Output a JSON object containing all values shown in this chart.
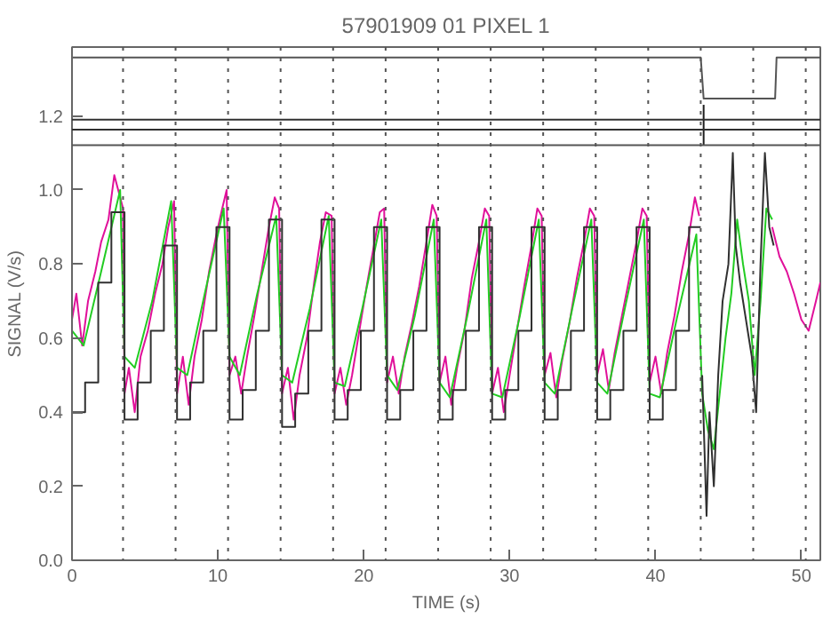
{
  "chart_data": {
    "type": "line",
    "title": "57901909 01 PIXEL 1",
    "xlabel": "TIME (s)",
    "ylabel": "SIGNAL (V/s)",
    "xlim": [
      0,
      51.3
    ],
    "ylim": [
      0,
      1.386
    ],
    "xticks": [
      0,
      10,
      20,
      30,
      40,
      50
    ],
    "yticks": [
      {
        "value": 0,
        "label": "0.0"
      },
      {
        "value": 0.2,
        "label": "0.2"
      },
      {
        "value": 0.4,
        "label": "0.4"
      },
      {
        "value": 0.6,
        "label": "0.6"
      },
      {
        "value": 0.8,
        "label": "0.8"
      },
      {
        "value": 1.0,
        "label": "1.0"
      },
      {
        "value": 1.2,
        "label": "1.2"
      }
    ],
    "grid": false,
    "marker": "none",
    "line_style": "solid",
    "series": [
      {
        "color": "#e0109a",
        "x": [
          0,
          0.3,
          0.7,
          1.1,
          1.6,
          2.0,
          2.5,
          2.9,
          3.3,
          3.5,
          3.6,
          3.9,
          4.3,
          4.7,
          5.2,
          5.7,
          6.2,
          6.6,
          7.0,
          7.2,
          7.6,
          8.0,
          8.4,
          8.9,
          9.4,
          9.9,
          10.3,
          10.6,
          10.8,
          11.2,
          11.6,
          12.0,
          12.5,
          13.0,
          13.5,
          13.9,
          14.2,
          14.4,
          14.8,
          15.2,
          15.6,
          16.1,
          16.6,
          17.0,
          17.4,
          17.8,
          18.0,
          18.4,
          18.8,
          19.2,
          19.7,
          20.2,
          20.7,
          21.1,
          21.4,
          21.6,
          22.0,
          22.4,
          22.8,
          23.3,
          23.8,
          24.3,
          24.7,
          25.0,
          25.2,
          25.6,
          26.0,
          26.4,
          26.9,
          27.4,
          27.9,
          28.3,
          28.6,
          28.8,
          29.2,
          29.6,
          30.0,
          30.5,
          31.0,
          31.5,
          31.9,
          32.2,
          32.4,
          32.8,
          33.2,
          33.6,
          34.1,
          34.6,
          35.1,
          35.5,
          35.8,
          36.0,
          36.4,
          36.8,
          37.2,
          37.7,
          38.2,
          38.7,
          39.1,
          39.4,
          39.6,
          40.0,
          40.4,
          40.8,
          41.3,
          41.8,
          42.3,
          42.7,
          43.0
        ],
        "values": [
          0.65,
          0.72,
          0.58,
          0.7,
          0.78,
          0.86,
          0.92,
          1.04,
          0.98,
          0.95,
          0.45,
          0.52,
          0.4,
          0.55,
          0.62,
          0.72,
          0.8,
          0.9,
          0.97,
          0.45,
          0.55,
          0.42,
          0.55,
          0.65,
          0.78,
          0.88,
          0.95,
          1.0,
          0.5,
          0.55,
          0.45,
          0.55,
          0.66,
          0.78,
          0.9,
          0.98,
          0.95,
          0.45,
          0.52,
          0.38,
          0.5,
          0.6,
          0.75,
          0.86,
          0.94,
          0.93,
          0.45,
          0.52,
          0.42,
          0.5,
          0.62,
          0.74,
          0.85,
          0.94,
          0.95,
          0.48,
          0.55,
          0.45,
          0.55,
          0.64,
          0.74,
          0.86,
          0.96,
          0.93,
          0.48,
          0.55,
          0.42,
          0.52,
          0.62,
          0.76,
          0.86,
          0.95,
          0.93,
          0.45,
          0.52,
          0.4,
          0.5,
          0.62,
          0.74,
          0.85,
          0.95,
          0.93,
          0.5,
          0.56,
          0.44,
          0.54,
          0.64,
          0.76,
          0.86,
          0.95,
          0.93,
          0.5,
          0.57,
          0.46,
          0.56,
          0.66,
          0.76,
          0.86,
          0.95,
          0.93,
          0.48,
          0.55,
          0.45,
          0.56,
          0.66,
          0.78,
          0.88,
          0.98,
          0.93
        ]
      },
      {
        "color": "#e0109a",
        "x": [
          48.0,
          48.5,
          49.0,
          49.5,
          50.0,
          50.5,
          51.0,
          51.3
        ],
        "values": [
          0.9,
          0.82,
          0.78,
          0.72,
          0.65,
          0.62,
          0.7,
          0.75
        ]
      },
      {
        "color": "#22cc22",
        "x": [
          0,
          0.8,
          2.0,
          3.3,
          3.6,
          4.3,
          5.5,
          6.8,
          7.2,
          7.9,
          9.1,
          10.4,
          10.8,
          11.5,
          12.7,
          14.0,
          14.4,
          15.1,
          16.3,
          17.6,
          18.0,
          18.7,
          19.9,
          21.2,
          21.6,
          22.3,
          23.5,
          24.8,
          25.2,
          25.9,
          27.1,
          28.4,
          28.8,
          29.5,
          30.7,
          32.0,
          32.4,
          33.1,
          34.3,
          35.6,
          36.0,
          36.7,
          37.9,
          39.2,
          39.6,
          40.3,
          41.5,
          42.8,
          43.2,
          43.6,
          44.0,
          44.4,
          44.8,
          45.2,
          45.6,
          46.0,
          46.4,
          46.8,
          47.2,
          47.6,
          48.0
        ],
        "values": [
          0.62,
          0.58,
          0.78,
          1.0,
          0.55,
          0.52,
          0.7,
          0.97,
          0.52,
          0.5,
          0.72,
          0.95,
          0.55,
          0.5,
          0.72,
          0.93,
          0.5,
          0.48,
          0.68,
          0.93,
          0.48,
          0.47,
          0.68,
          0.92,
          0.5,
          0.46,
          0.66,
          0.92,
          0.48,
          0.44,
          0.66,
          0.92,
          0.45,
          0.44,
          0.66,
          0.92,
          0.48,
          0.45,
          0.68,
          0.92,
          0.48,
          0.45,
          0.68,
          0.92,
          0.45,
          0.44,
          0.66,
          0.88,
          0.45,
          0.35,
          0.3,
          0.45,
          0.6,
          0.72,
          0.92,
          0.8,
          0.7,
          0.5,
          0.7,
          0.95,
          0.92
        ]
      },
      {
        "type": "step",
        "color": "#303030",
        "x": [
          0,
          0.9,
          1.8,
          2.7,
          3.6,
          4.5,
          5.4,
          6.3,
          7.2,
          8.1,
          9.0,
          9.9,
          10.8,
          11.7,
          12.6,
          13.5,
          14.4,
          15.3,
          16.2,
          17.1,
          18.0,
          18.9,
          19.8,
          20.7,
          21.6,
          22.5,
          23.4,
          24.3,
          25.2,
          26.1,
          27.0,
          27.9,
          28.8,
          29.7,
          30.6,
          31.5,
          32.4,
          33.3,
          34.2,
          35.1,
          36.0,
          36.9,
          37.8,
          38.7,
          39.6,
          40.5,
          41.4,
          42.3,
          43.1
        ],
        "values": [
          0.4,
          0.48,
          0.75,
          0.94,
          0.38,
          0.48,
          0.62,
          0.85,
          0.38,
          0.48,
          0.62,
          0.9,
          0.38,
          0.46,
          0.62,
          0.92,
          0.36,
          0.45,
          0.62,
          0.92,
          0.38,
          0.46,
          0.62,
          0.9,
          0.38,
          0.46,
          0.62,
          0.9,
          0.38,
          0.46,
          0.62,
          0.9,
          0.38,
          0.46,
          0.62,
          0.9,
          0.38,
          0.46,
          0.62,
          0.9,
          0.38,
          0.46,
          0.62,
          0.9,
          0.38,
          0.46,
          0.62,
          0.9,
          0.9
        ]
      },
      {
        "type": "line",
        "color": "#303030",
        "x": [
          43.2,
          43.5,
          43.7,
          44.0,
          44.3,
          44.6,
          45.0,
          45.3,
          45.5,
          45.8,
          46.2,
          46.6,
          46.9,
          47.2,
          47.5,
          47.8,
          48.1
        ],
        "values": [
          0.5,
          0.12,
          0.4,
          0.2,
          0.5,
          0.7,
          0.8,
          1.1,
          0.85,
          0.75,
          0.65,
          0.55,
          0.4,
          0.8,
          1.1,
          0.9,
          0.85
        ]
      },
      {
        "type": "line",
        "color": "#555555",
        "x": [
          0,
          43.1,
          43.3,
          48.2,
          48.3,
          51.3
        ],
        "values": [
          1.358,
          1.358,
          1.247,
          1.247,
          1.358,
          1.358
        ]
      },
      {
        "type": "line",
        "color": "#202020",
        "x": [
          43.3,
          43.3
        ],
        "values": [
          1.121,
          1.23
        ]
      }
    ],
    "ref_lines": [
      {
        "axis": "y",
        "value": 1.19,
        "color": "#303030",
        "line_style": "solid"
      },
      {
        "axis": "y",
        "value": 1.163,
        "color": "#303030",
        "line_style": "solid"
      },
      {
        "axis": "y",
        "value": 1.121,
        "color": "#555555",
        "line_style": "solid"
      },
      {
        "axis": "x",
        "value": 3.5,
        "color": "#555555",
        "line_style": "dotted"
      },
      {
        "axis": "x",
        "value": 7.1,
        "color": "#555555",
        "line_style": "dotted"
      },
      {
        "axis": "x",
        "value": 10.7,
        "color": "#555555",
        "line_style": "dotted"
      },
      {
        "axis": "x",
        "value": 14.3,
        "color": "#555555",
        "line_style": "dotted"
      },
      {
        "axis": "x",
        "value": 17.9,
        "color": "#555555",
        "line_style": "dotted"
      },
      {
        "axis": "x",
        "value": 21.5,
        "color": "#555555",
        "line_style": "dotted"
      },
      {
        "axis": "x",
        "value": 25.1,
        "color": "#555555",
        "line_style": "dotted"
      },
      {
        "axis": "x",
        "value": 28.7,
        "color": "#555555",
        "line_style": "dotted"
      },
      {
        "axis": "x",
        "value": 32.3,
        "color": "#555555",
        "line_style": "dotted"
      },
      {
        "axis": "x",
        "value": 35.9,
        "color": "#555555",
        "line_style": "dotted"
      },
      {
        "axis": "x",
        "value": 39.5,
        "color": "#555555",
        "line_style": "dotted"
      },
      {
        "axis": "x",
        "value": 43.1,
        "color": "#555555",
        "line_style": "dotted"
      },
      {
        "axis": "x",
        "value": 46.7,
        "color": "#555555",
        "line_style": "dotted"
      },
      {
        "axis": "x",
        "value": 50.3,
        "color": "#555555",
        "line_style": "dotted"
      }
    ]
  }
}
